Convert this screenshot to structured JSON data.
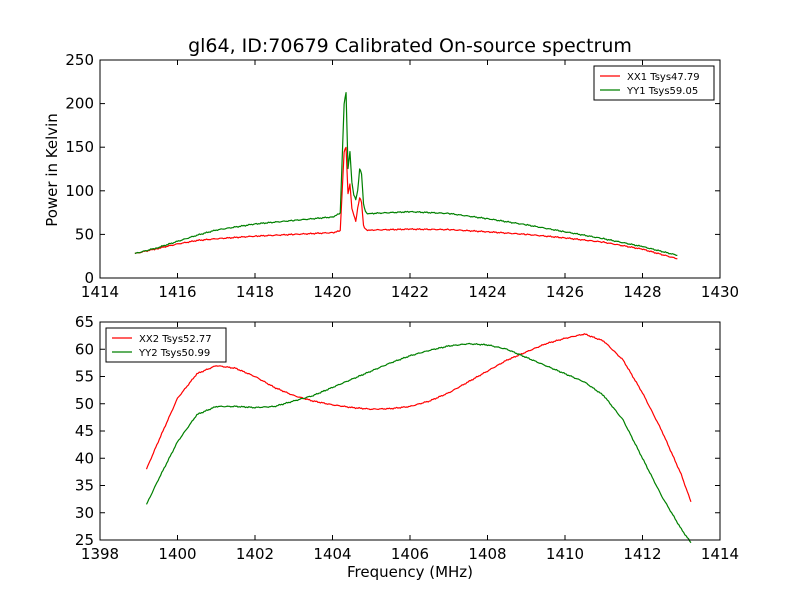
{
  "chart_data": [
    {
      "type": "line",
      "title": "gl64, ID:70679 Calibrated On-source spectrum",
      "xlabel": "",
      "ylabel": "Power in Kelvin",
      "xlim": [
        1414,
        1430
      ],
      "ylim": [
        0,
        250
      ],
      "xticks": [
        1414,
        1416,
        1418,
        1420,
        1422,
        1424,
        1426,
        1428,
        1430
      ],
      "yticks": [
        0,
        50,
        100,
        150,
        200,
        250
      ],
      "grid": false,
      "legend_position": "top-right",
      "series": [
        {
          "name": "XX1 Tsys47.79",
          "color": "#ff0000",
          "x": [
            1414.9,
            1415.5,
            1416,
            1416.5,
            1417,
            1418,
            1419,
            1420,
            1420.2,
            1420.3,
            1420.35,
            1420.4,
            1420.45,
            1420.5,
            1420.55,
            1420.6,
            1420.65,
            1420.7,
            1420.75,
            1420.8,
            1420.85,
            1420.9,
            1421,
            1422,
            1423,
            1424,
            1425,
            1426,
            1427,
            1428,
            1428.9
          ],
          "y": [
            28,
            34,
            39,
            43,
            45,
            48,
            50,
            52,
            54,
            145,
            150,
            96,
            108,
            80,
            72,
            65,
            80,
            92,
            87,
            60,
            56,
            55,
            55,
            56,
            55.5,
            53,
            50,
            46,
            41,
            33,
            22
          ]
        },
        {
          "name": "YY1 Tsys59.05",
          "color": "#008000",
          "x": [
            1414.9,
            1415.5,
            1416,
            1416.5,
            1417,
            1418,
            1419,
            1420,
            1420.2,
            1420.3,
            1420.35,
            1420.4,
            1420.45,
            1420.5,
            1420.55,
            1420.6,
            1420.65,
            1420.7,
            1420.75,
            1420.8,
            1420.85,
            1420.9,
            1421,
            1422,
            1423,
            1424,
            1425,
            1426,
            1427,
            1428,
            1428.9
          ],
          "y": [
            28,
            35,
            42,
            49,
            55,
            62,
            66,
            70,
            74,
            200,
            213,
            125,
            145,
            110,
            95,
            90,
            100,
            125,
            120,
            85,
            76,
            74,
            74,
            76,
            74,
            68,
            61,
            53,
            45,
            36,
            26
          ]
        }
      ]
    },
    {
      "type": "line",
      "title": "",
      "xlabel": "Frequency (MHz)",
      "ylabel": "",
      "xlim": [
        1398,
        1414
      ],
      "ylim": [
        25,
        65
      ],
      "xticks": [
        1398,
        1400,
        1402,
        1404,
        1406,
        1408,
        1410,
        1412,
        1414
      ],
      "yticks": [
        25,
        30,
        35,
        40,
        45,
        50,
        55,
        60,
        65
      ],
      "grid": false,
      "legend_position": "top-left",
      "series": [
        {
          "name": "XX2 Tsys52.77",
          "color": "#ff0000",
          "x": [
            1399.2,
            1399.5,
            1400,
            1400.5,
            1401,
            1401.5,
            1402,
            1402.5,
            1403,
            1403.5,
            1404,
            1404.5,
            1405,
            1405.5,
            1406,
            1406.5,
            1407,
            1407.5,
            1408,
            1408.5,
            1409,
            1409.5,
            1410,
            1410.5,
            1411,
            1411.5,
            1412,
            1412.5,
            1413,
            1413.25
          ],
          "y": [
            38,
            43,
            51,
            55.5,
            57,
            56.5,
            55,
            53,
            51.5,
            50.5,
            49.8,
            49.3,
            49,
            49.1,
            49.5,
            50.5,
            52,
            54,
            56,
            58,
            59.5,
            61,
            62,
            62.8,
            61.5,
            58,
            52,
            45,
            37,
            32
          ]
        },
        {
          "name": "YY2 Tsys50.99",
          "color": "#008000",
          "x": [
            1399.2,
            1399.5,
            1400,
            1400.5,
            1401,
            1401.5,
            1402,
            1402.5,
            1403,
            1403.5,
            1404,
            1404.5,
            1405,
            1405.5,
            1406,
            1406.5,
            1407,
            1407.5,
            1408,
            1408.5,
            1409,
            1409.5,
            1410,
            1410.5,
            1411,
            1411.5,
            1412,
            1412.5,
            1413,
            1413.25
          ],
          "y": [
            31.5,
            36,
            43,
            48,
            49.5,
            49.5,
            49.3,
            49.5,
            50.5,
            51.5,
            53,
            54.5,
            56,
            57.5,
            58.8,
            59.8,
            60.6,
            61,
            60.8,
            60,
            58.5,
            57,
            55.5,
            54,
            51.5,
            47,
            40,
            33,
            27,
            24.5
          ]
        }
      ]
    }
  ]
}
